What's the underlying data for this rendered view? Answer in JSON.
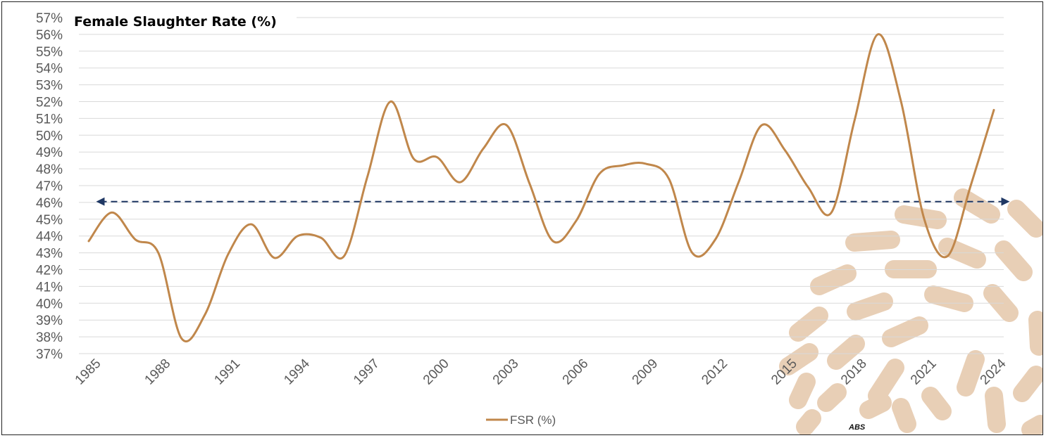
{
  "chart_data": {
    "type": "line",
    "title": "Female Slaughter Rate (%)",
    "xlabel": "",
    "ylabel": "",
    "x": [
      1985,
      1986,
      1987,
      1988,
      1989,
      1990,
      1991,
      1992,
      1993,
      1994,
      1995,
      1996,
      1997,
      1998,
      1999,
      2000,
      2001,
      2002,
      2003,
      2004,
      2005,
      2006,
      2007,
      2008,
      2009,
      2010,
      2011,
      2012,
      2013,
      2014,
      2015,
      2016,
      2017,
      2018,
      2019,
      2020,
      2021,
      2022,
      2023,
      2024
    ],
    "x_tick_labels": [
      "1985",
      "1988",
      "1991",
      "1994",
      "1997",
      "2000",
      "2003",
      "2006",
      "2009",
      "2012",
      "2015",
      "2018",
      "2021",
      "2024"
    ],
    "ylim": [
      37,
      57
    ],
    "y_tick_labels": [
      "37%",
      "38%",
      "39%",
      "40%",
      "41%",
      "42%",
      "43%",
      "44%",
      "45%",
      "46%",
      "47%",
      "48%",
      "49%",
      "50%",
      "51%",
      "52%",
      "53%",
      "54%",
      "55%",
      "56%",
      "57%"
    ],
    "grid": "horizontal",
    "series": [
      {
        "name": "FSR (%)",
        "color": "#C0874B",
        "values": [
          43.7,
          45.4,
          43.8,
          43.0,
          37.9,
          39.3,
          42.9,
          44.7,
          42.7,
          44.0,
          43.9,
          42.8,
          47.5,
          52.0,
          48.6,
          48.7,
          47.2,
          49.2,
          50.6,
          47.1,
          43.7,
          44.9,
          47.7,
          48.2,
          48.3,
          47.4,
          43.0,
          43.8,
          47.2,
          50.6,
          49.1,
          46.9,
          45.4,
          50.9,
          56.0,
          52.0,
          45.0,
          42.8,
          47.0,
          51.5
        ]
      }
    ],
    "reference_line": {
      "value": 46.05,
      "x_start": 1985.5,
      "x_end": 2024.5,
      "color": "#1F3864",
      "style": "dashed-double-arrow"
    },
    "legend": {
      "position": "bottom-center",
      "entries": [
        "FSR (%)"
      ]
    },
    "source_text": "ABS",
    "watermark_color": "#E8CFB6"
  }
}
